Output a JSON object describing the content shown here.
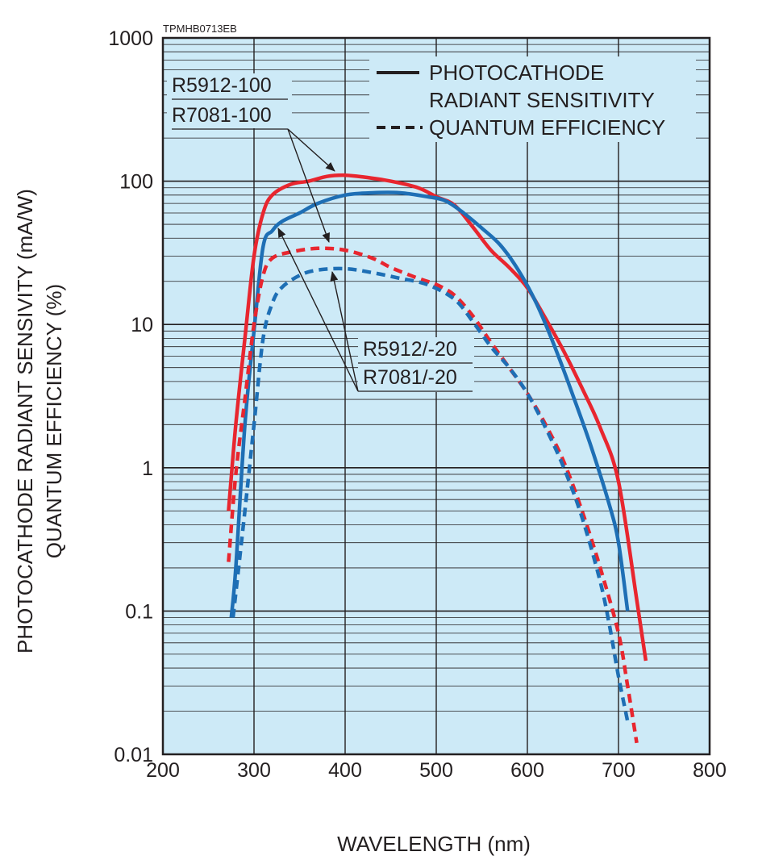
{
  "chart_data": {
    "type": "line",
    "figure_code": "TPMHB0713EB",
    "xlabel": "WAVELENGTH (nm)",
    "ylabel_line1": "PHOTOCATHODE RADIANT SENSIVITY (mA/W)",
    "ylabel_line2": "QUANTUM EFFICIENCY (%)",
    "xlim": [
      200,
      800
    ],
    "ylim": [
      0.01,
      1000
    ],
    "yscale": "log",
    "grid": true,
    "x_ticks": [
      "200",
      "300",
      "400",
      "500",
      "600",
      "700",
      "800"
    ],
    "y_ticks": [
      "0.01",
      "0.1",
      "1",
      "10",
      "100",
      "1000"
    ],
    "legend": {
      "solid_label_line1": "PHOTOCATHODE",
      "solid_label_line2": "RADIANT SENSITIVITY",
      "dashed_label": "QUANTUM EFFICIENCY",
      "placement": "top-right"
    },
    "callouts": {
      "upper_label_1": "R5912-100",
      "upper_label_2": "R7081-100",
      "lower_label_1": "R5912/-20",
      "lower_label_2": "R7081/-20"
    },
    "colors": {
      "red": "#e8262f",
      "blue": "#1e6fb5",
      "plot_bg": "#cdeaf7",
      "grid": "#231f20"
    },
    "series": [
      {
        "color": "red",
        "style": "solid",
        "points": [
          [
            272,
            0.5
          ],
          [
            280,
            2
          ],
          [
            290,
            8
          ],
          [
            300,
            30
          ],
          [
            310,
            60
          ],
          [
            320,
            80
          ],
          [
            340,
            95
          ],
          [
            360,
            100
          ],
          [
            380,
            108
          ],
          [
            400,
            110
          ],
          [
            420,
            107
          ],
          [
            450,
            100
          ],
          [
            480,
            90
          ],
          [
            500,
            78
          ],
          [
            520,
            68
          ],
          [
            540,
            48
          ],
          [
            560,
            33
          ],
          [
            580,
            25
          ],
          [
            600,
            18
          ],
          [
            620,
            11
          ],
          [
            640,
            6.5
          ],
          [
            660,
            3.6
          ],
          [
            680,
            1.9
          ],
          [
            700,
            0.8
          ],
          [
            720,
            0.12
          ],
          [
            730,
            0.045
          ]
        ]
      },
      {
        "color": "blue",
        "style": "solid",
        "points": [
          [
            275,
            0.09
          ],
          [
            280,
            0.2
          ],
          [
            290,
            2
          ],
          [
            300,
            9
          ],
          [
            310,
            35
          ],
          [
            320,
            45
          ],
          [
            330,
            52
          ],
          [
            350,
            60
          ],
          [
            370,
            70
          ],
          [
            400,
            80
          ],
          [
            430,
            83
          ],
          [
            460,
            83
          ],
          [
            490,
            78
          ],
          [
            510,
            73
          ],
          [
            530,
            60
          ],
          [
            550,
            47
          ],
          [
            570,
            36
          ],
          [
            590,
            24
          ],
          [
            610,
            14
          ],
          [
            630,
            7
          ],
          [
            650,
            3.2
          ],
          [
            670,
            1.4
          ],
          [
            690,
            0.55
          ],
          [
            700,
            0.3
          ],
          [
            710,
            0.1
          ]
        ]
      },
      {
        "color": "red",
        "style": "dashed",
        "points": [
          [
            272,
            0.22
          ],
          [
            280,
            0.9
          ],
          [
            290,
            3
          ],
          [
            300,
            10
          ],
          [
            310,
            22
          ],
          [
            320,
            29
          ],
          [
            340,
            32
          ],
          [
            370,
            34
          ],
          [
            400,
            33
          ],
          [
            430,
            29
          ],
          [
            450,
            25
          ],
          [
            480,
            21
          ],
          [
            500,
            19
          ],
          [
            520,
            16
          ],
          [
            540,
            11.5
          ],
          [
            560,
            7.5
          ],
          [
            580,
            5
          ],
          [
            600,
            3.3
          ],
          [
            620,
            2
          ],
          [
            640,
            1.1
          ],
          [
            660,
            0.5
          ],
          [
            680,
            0.2
          ],
          [
            700,
            0.07
          ],
          [
            710,
            0.03
          ],
          [
            720,
            0.012
          ]
        ]
      },
      {
        "color": "blue",
        "style": "dashed",
        "points": [
          [
            277,
            0.09
          ],
          [
            290,
            0.5
          ],
          [
            300,
            2
          ],
          [
            310,
            8
          ],
          [
            320,
            14
          ],
          [
            330,
            18
          ],
          [
            350,
            22
          ],
          [
            370,
            24
          ],
          [
            400,
            24.5
          ],
          [
            430,
            23
          ],
          [
            460,
            21
          ],
          [
            490,
            19
          ],
          [
            520,
            15
          ],
          [
            540,
            10.5
          ],
          [
            560,
            7
          ],
          [
            580,
            5
          ],
          [
            600,
            3.3
          ],
          [
            620,
            1.9
          ],
          [
            640,
            1.0
          ],
          [
            660,
            0.45
          ],
          [
            680,
            0.16
          ],
          [
            690,
            0.08
          ],
          [
            700,
            0.035
          ],
          [
            710,
            0.017
          ]
        ]
      }
    ]
  }
}
